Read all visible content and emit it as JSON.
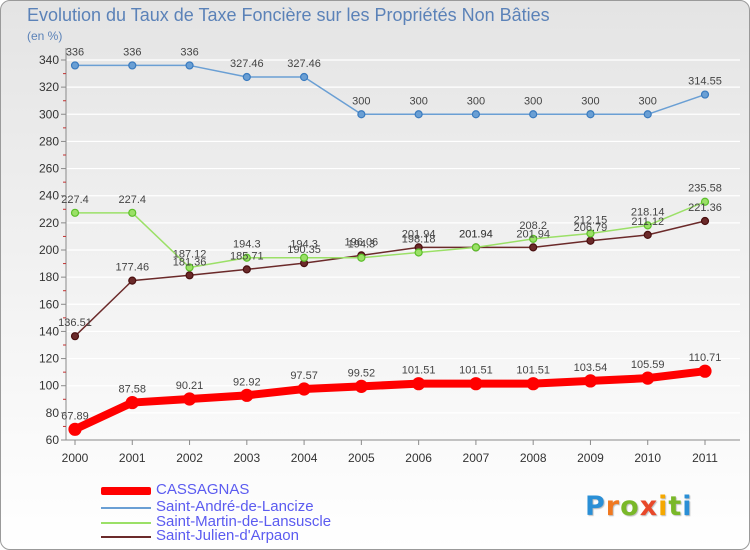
{
  "chart_data": {
    "type": "line",
    "title": "Evolution du Taux de Taxe Foncière sur les Propriétés Non Bâties",
    "subtitle": "(en %)",
    "xlabel": "",
    "ylabel": "",
    "categories": [
      "2000",
      "2001",
      "2002",
      "2003",
      "2004",
      "2005",
      "2006",
      "2007",
      "2008",
      "2009",
      "2010",
      "2011"
    ],
    "ylim": [
      60,
      340
    ],
    "yticks": [
      60,
      80,
      100,
      120,
      140,
      160,
      180,
      200,
      220,
      240,
      260,
      280,
      300,
      320,
      340
    ],
    "grid": true,
    "legend_position": "bottom-left",
    "series": [
      {
        "name": "CASSAGNAS",
        "color": "#ff0000",
        "marker_color": "#ff0000",
        "values": [
          67.89,
          87.58,
          90.21,
          92.92,
          97.57,
          99.52,
          101.51,
          101.51,
          101.51,
          103.54,
          105.59,
          110.71
        ]
      },
      {
        "name": "Saint-André-de-Lancize",
        "color": "#6a9fd4",
        "marker_color": "#3a7bbf",
        "values": [
          336,
          336,
          336,
          327.46,
          327.46,
          300,
          300,
          300,
          300,
          300,
          300,
          314.55
        ]
      },
      {
        "name": "Saint-Martin-de-Lansuscle",
        "color": "#9be067",
        "marker_color": "#5cbf2a",
        "values": [
          227.4,
          227.4,
          187.12,
          194.3,
          194.3,
          194.3,
          198.18,
          201.94,
          208.2,
          212.15,
          218.14,
          235.58
        ]
      },
      {
        "name": "Saint-Julien-d'Arpaon",
        "color": "#6b2a2a",
        "marker_color": "#4a1010",
        "values": [
          136.51,
          177.46,
          181.36,
          185.71,
          190.35,
          196.06,
          201.94,
          201.94,
          201.94,
          206.79,
          211.12,
          221.36
        ]
      }
    ]
  },
  "logo": {
    "letters": [
      "P",
      "r",
      "o",
      "x",
      "i",
      "t",
      "i"
    ]
  },
  "colors": {
    "title": "#5b82b8",
    "legend_text": "#5b5bf0",
    "grid": "#ffffff",
    "axis": "#8a8a8a",
    "minor_tick": "#c03030",
    "tick_label": "#333333",
    "data_label": "#444444"
  }
}
